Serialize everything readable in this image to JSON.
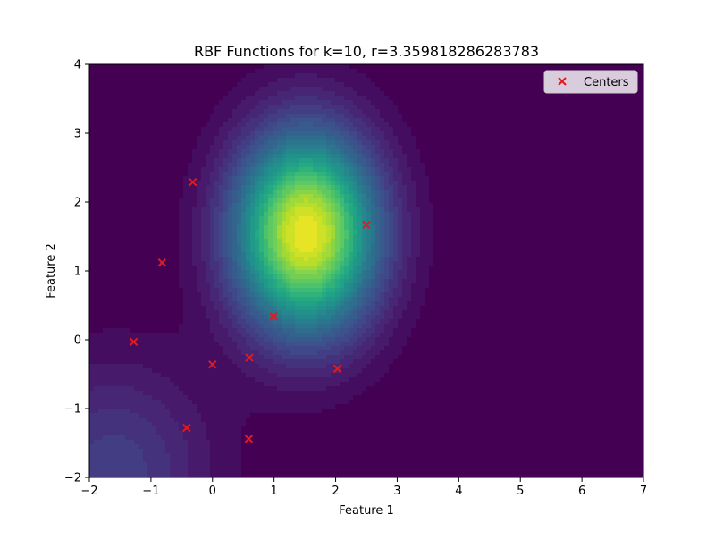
{
  "chart_data": {
    "type": "scatter",
    "title": "RBF Functions for k=10, r=3.359818286283783",
    "xlabel": "Feature 1",
    "ylabel": "Feature 2",
    "xlim": [
      -2,
      7
    ],
    "ylim": [
      -2,
      4
    ],
    "x_ticks": [
      -2,
      -1,
      0,
      1,
      2,
      3,
      4,
      5,
      6,
      7
    ],
    "x_tick_labels": [
      "−2",
      "−1",
      "0",
      "1",
      "2",
      "3",
      "4",
      "5",
      "6",
      "7"
    ],
    "y_ticks": [
      -2,
      -1,
      0,
      1,
      2,
      3,
      4
    ],
    "y_tick_labels": [
      "−2",
      "−1",
      "0",
      "1",
      "2",
      "3",
      "4"
    ],
    "grid": false,
    "legend": {
      "position": "top-right",
      "entries": [
        "Centers"
      ]
    },
    "series": [
      {
        "name": "Centers",
        "marker": "x",
        "color": "#e41a1c",
        "x": [
          -0.32,
          2.5,
          -0.82,
          0.99,
          -1.28,
          0.0,
          0.6,
          2.03,
          -0.42,
          0.59
        ],
        "y": [
          2.29,
          1.67,
          1.12,
          0.34,
          -0.03,
          -0.36,
          -0.26,
          -0.42,
          -1.28,
          -1.44
        ]
      }
    ],
    "background_field": {
      "type": "filled-contour",
      "colormap": "viridis",
      "peak": [
        1.52,
        1.55
      ],
      "spread_x": 0.8,
      "spread_y": 1.0,
      "secondary_peak": [
        -1.6,
        -1.9
      ]
    }
  }
}
